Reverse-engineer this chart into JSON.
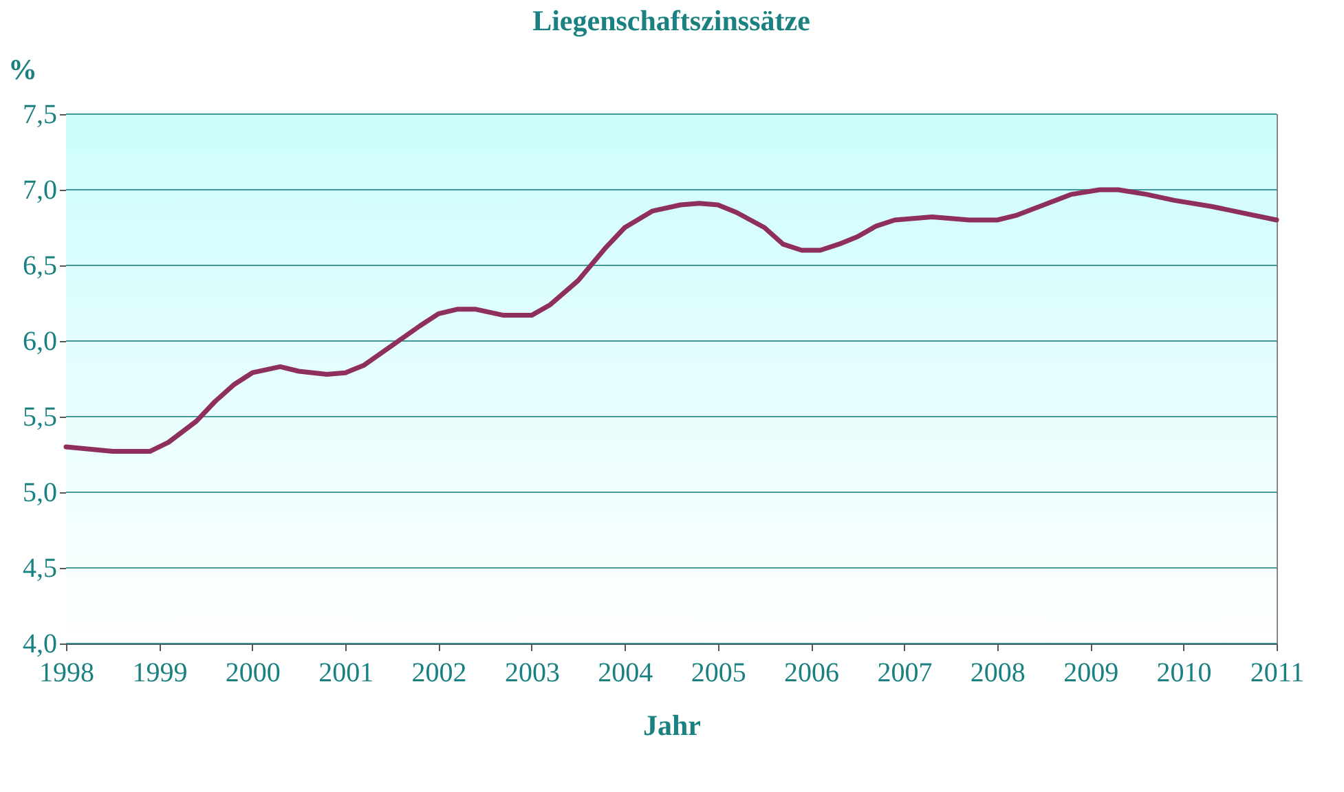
{
  "chart_data": {
    "type": "line",
    "title": "Liegenschaftszinssätze",
    "xlabel": "Jahr",
    "ylabel": "%",
    "x": [
      1998,
      1998.5,
      1998.9,
      1999.1,
      1999.4,
      1999.6,
      1999.8,
      2000,
      2000.3,
      2000.5,
      2000.8,
      2001,
      2001.2,
      2001.5,
      2001.8,
      2002,
      2002.2,
      2002.4,
      2002.7,
      2003,
      2003.2,
      2003.5,
      2003.8,
      2004,
      2004.3,
      2004.6,
      2004.8,
      2005,
      2005.2,
      2005.5,
      2005.7,
      2005.9,
      2006.1,
      2006.3,
      2006.5,
      2006.7,
      2006.9,
      2007.3,
      2007.7,
      2008,
      2008.2,
      2008.5,
      2008.8,
      2009.1,
      2009.3,
      2009.6,
      2009.9,
      2010.3,
      2011
    ],
    "series": [
      {
        "color": "#8e2f5e",
        "values": [
          5.3,
          5.27,
          5.27,
          5.33,
          5.47,
          5.6,
          5.71,
          5.79,
          5.83,
          5.8,
          5.78,
          5.79,
          5.84,
          5.97,
          6.1,
          6.18,
          6.21,
          6.21,
          6.17,
          6.17,
          6.24,
          6.4,
          6.62,
          6.75,
          6.86,
          6.9,
          6.91,
          6.9,
          6.85,
          6.75,
          6.64,
          6.6,
          6.6,
          6.64,
          6.69,
          6.76,
          6.8,
          6.82,
          6.8,
          6.8,
          6.83,
          6.9,
          6.97,
          7.0,
          7.0,
          6.97,
          6.93,
          6.89,
          6.8
        ]
      }
    ],
    "xlim": [
      1998,
      2011
    ],
    "xticks": [
      1998,
      1999,
      2000,
      2001,
      2002,
      2003,
      2004,
      2005,
      2006,
      2007,
      2008,
      2009,
      2010,
      2011
    ],
    "ylim": [
      4.0,
      7.5
    ],
    "yticks": [
      {
        "value": 4.0,
        "label": "4,0"
      },
      {
        "value": 4.5,
        "label": "4,5"
      },
      {
        "value": 5.0,
        "label": "5,0"
      },
      {
        "value": 5.5,
        "label": "5,5"
      },
      {
        "value": 6.0,
        "label": "6,0"
      },
      {
        "value": 6.5,
        "label": "6,5"
      },
      {
        "value": 7.0,
        "label": "7,0"
      },
      {
        "value": 7.5,
        "label": "7,5"
      }
    ],
    "grid": "y",
    "marker": "none",
    "line_style": "solid"
  }
}
